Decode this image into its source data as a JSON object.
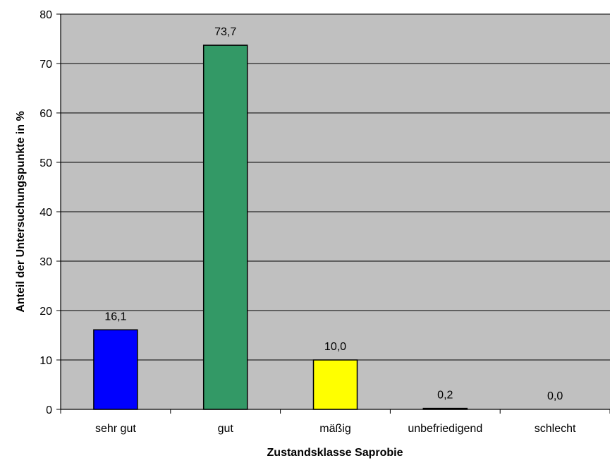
{
  "chart_data": {
    "type": "bar",
    "categories": [
      "sehr gut",
      "gut",
      "mäßig",
      "unbefriedigend",
      "schlecht"
    ],
    "values": [
      16.1,
      73.7,
      10.0,
      0.2,
      0.0
    ],
    "data_labels": [
      "16,1",
      "73,7",
      "10,0",
      "0,2",
      "0,0"
    ],
    "bar_colors": [
      "#0000ff",
      "#339966",
      "#ffff00",
      "#000000",
      "#000000"
    ],
    "plot_background": "#c0c0c0",
    "title": "",
    "xlabel": "Zustandsklasse Saprobie",
    "ylabel": "Anteil der Untersuchungspunkte in %",
    "ylim": [
      0,
      80
    ],
    "yticks": [
      0,
      10,
      20,
      30,
      40,
      50,
      60,
      70,
      80
    ],
    "grid": true,
    "legend": "none"
  }
}
